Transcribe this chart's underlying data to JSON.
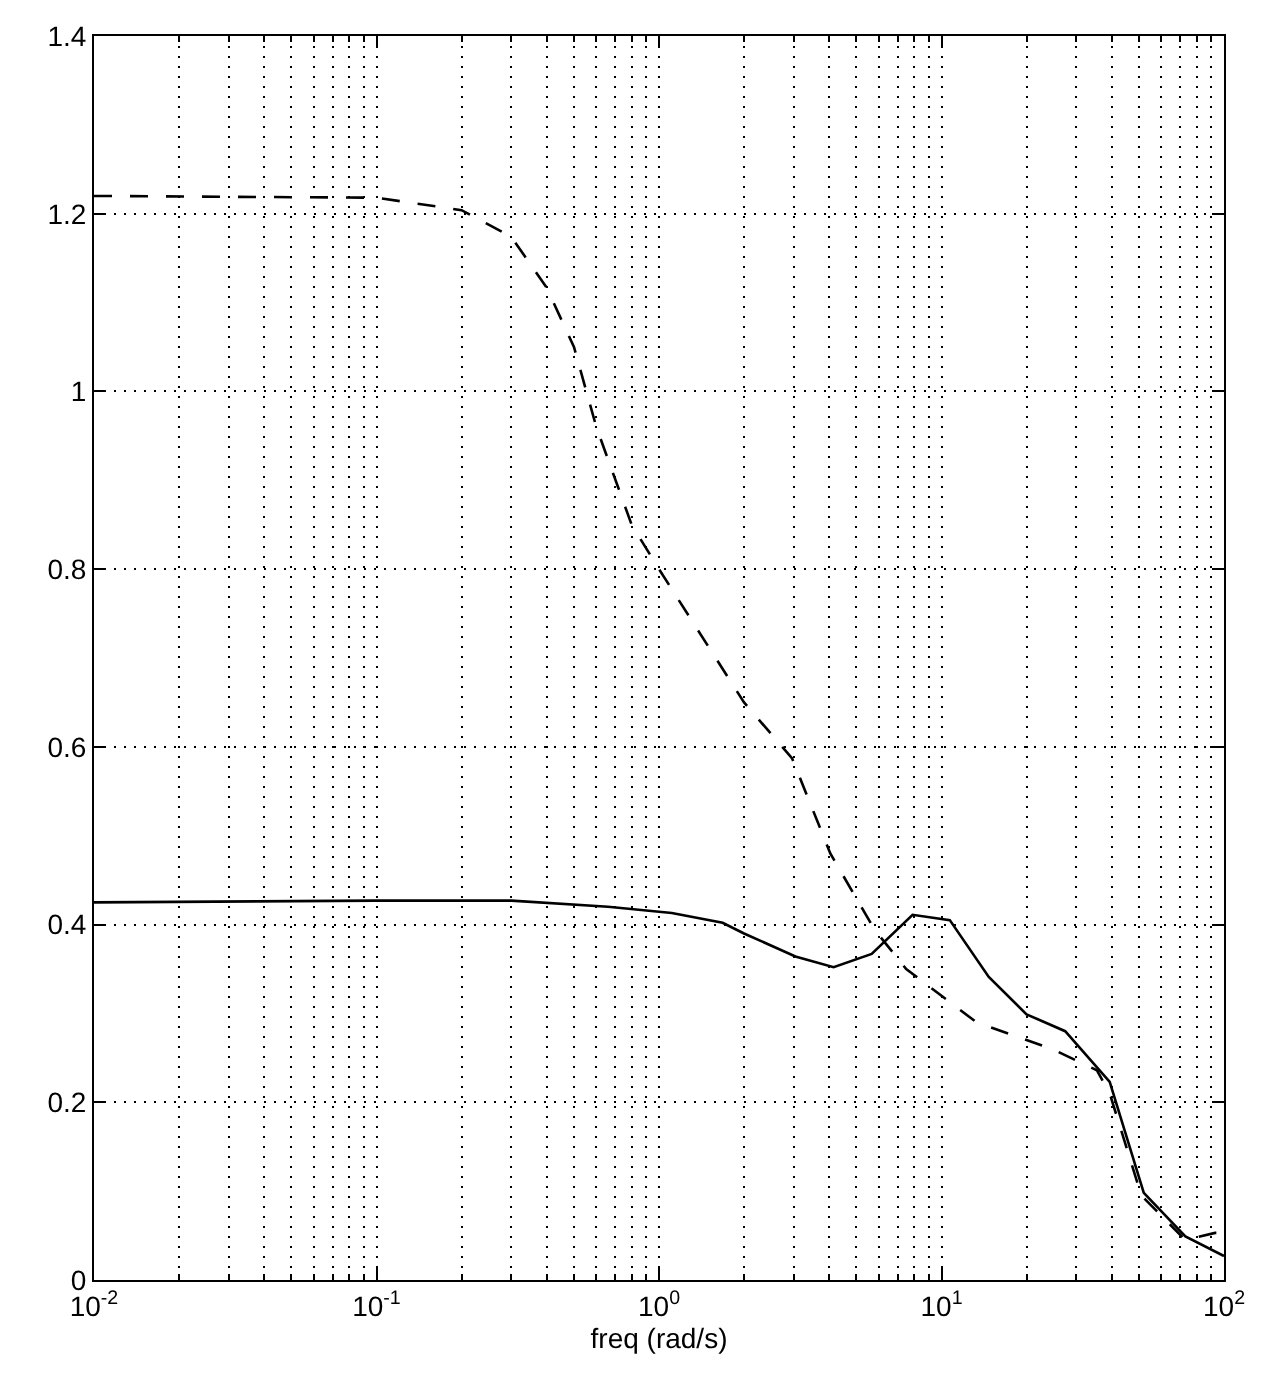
{
  "chart_data": {
    "type": "line",
    "xlabel": "freq (rad/s)",
    "log": "x",
    "grid": true,
    "marker": "none",
    "xlim": [
      0.01,
      100
    ],
    "xticks": [
      {
        "value": 0.01,
        "label": "10$^{-2}$"
      },
      {
        "value": 0.1,
        "label": "10$^{-1}$"
      },
      {
        "value": 1,
        "label": "10$^{0}$"
      },
      {
        "value": 10,
        "label": "10$^{1}$"
      },
      {
        "value": 100,
        "label": "10$^{2}$"
      }
    ],
    "ylim": [
      0,
      1.4
    ],
    "yticks": [
      0,
      0.2,
      0.4,
      0.6,
      0.8,
      1,
      1.2,
      1.4
    ],
    "series": [
      {
        "color": "#000000",
        "line_style": "solid",
        "x": [
          0.01,
          0.1,
          0.3,
          0.66,
          1.11,
          1.68,
          2,
          3.04,
          4.15,
          5.66,
          7.9,
          10.7,
          14.7,
          20,
          27.4,
          39.4,
          52,
          73,
          100
        ],
        "values": [
          0.425,
          0.427,
          0.427,
          0.42,
          0.413,
          0.402,
          0.39,
          0.364,
          0.352,
          0.367,
          0.411,
          0.405,
          0.341,
          0.299,
          0.28,
          0.223,
          0.098,
          0.049,
          0.027
        ]
      },
      {
        "color": "#000000",
        "line_style": "dashed",
        "x": [
          0.01,
          0.1,
          0.2,
          0.3,
          0.4,
          0.5,
          0.6,
          0.8,
          1,
          2,
          2.96,
          4.04,
          5.8,
          7.5,
          13.3,
          24.6,
          35.5,
          39.4,
          51,
          73,
          93,
          100
        ],
        "values": [
          1.22,
          1.218,
          1.204,
          1.174,
          1.117,
          1.05,
          0.96,
          0.85,
          0.8,
          0.65,
          0.587,
          0.48,
          0.394,
          0.35,
          0.29,
          0.26,
          0.236,
          0.21,
          0.095,
          0.045,
          0.053,
          0.053
        ]
      }
    ]
  }
}
